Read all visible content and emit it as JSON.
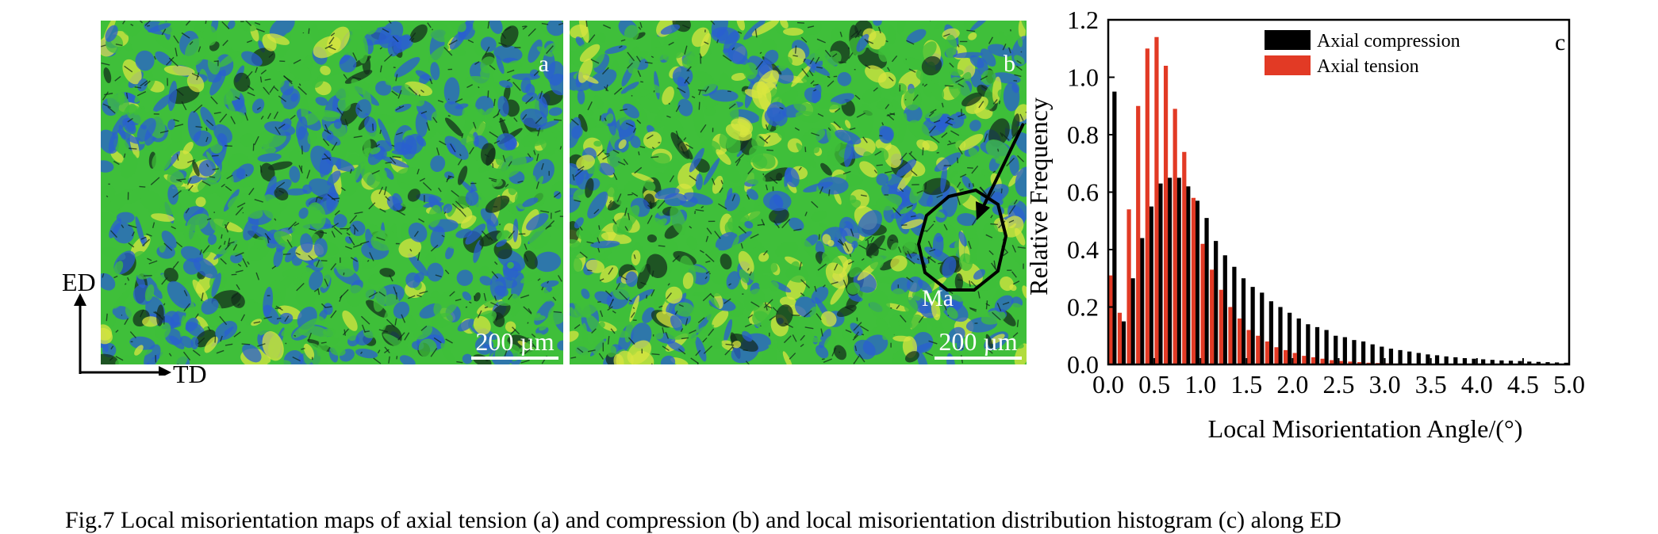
{
  "panels": {
    "a": {
      "letter": "a",
      "scale_label": "200 µm"
    },
    "b": {
      "letter": "b",
      "scale_label": "200 µm",
      "annotation": "Ma"
    }
  },
  "axes_indicator": {
    "vertical": "ED",
    "horizontal": "TD"
  },
  "caption": "Fig.7    Local misorientation maps of axial tension (a) and compression (b) and local misorientation distribution histogram (c) along ED",
  "colors": {
    "compression": "#000000",
    "tension": "#e23a25",
    "map_blue": "#2a5fd0",
    "map_green": "#3fbf3a",
    "map_yellow": "#d8e640"
  },
  "chart_data": {
    "type": "bar",
    "panel_letter": "c",
    "xlabel": "Local Misorientation Angle/(°)",
    "ylabel": "Relative Frequency",
    "xlim": [
      0,
      5.0
    ],
    "ylim": [
      0,
      1.2
    ],
    "xticks": [
      "0.0",
      "0.5",
      "1.0",
      "1.5",
      "2.0",
      "2.5",
      "3.0",
      "3.5",
      "4.0",
      "4.5",
      "5.0"
    ],
    "yticks": [
      "0.0",
      "0.2",
      "0.4",
      "0.6",
      "0.8",
      "1.0",
      "1.2"
    ],
    "legend_position": "top-right",
    "bin_width": 0.1,
    "x": [
      0.05,
      0.15,
      0.25,
      0.35,
      0.45,
      0.55,
      0.65,
      0.75,
      0.85,
      0.95,
      1.05,
      1.15,
      1.25,
      1.35,
      1.45,
      1.55,
      1.65,
      1.75,
      1.85,
      1.95,
      2.05,
      2.15,
      2.25,
      2.35,
      2.45,
      2.55,
      2.65,
      2.75,
      2.85,
      2.95,
      3.05,
      3.15,
      3.25,
      3.35,
      3.45,
      3.55,
      3.65,
      3.75,
      3.85,
      3.95,
      4.05,
      4.15,
      4.25,
      4.35,
      4.45,
      4.55,
      4.65,
      4.75,
      4.85,
      4.95
    ],
    "series": [
      {
        "name": "Axial compression",
        "color": "#000000",
        "values": [
          0.95,
          0.15,
          0.3,
          0.44,
          0.55,
          0.63,
          0.65,
          0.65,
          0.62,
          0.57,
          0.51,
          0.43,
          0.38,
          0.34,
          0.3,
          0.27,
          0.25,
          0.22,
          0.2,
          0.18,
          0.16,
          0.14,
          0.13,
          0.12,
          0.1,
          0.095,
          0.085,
          0.08,
          0.07,
          0.062,
          0.055,
          0.05,
          0.045,
          0.04,
          0.035,
          0.032,
          0.028,
          0.025,
          0.022,
          0.02,
          0.018,
          0.016,
          0.014,
          0.013,
          0.012,
          0.01,
          0.009,
          0.008,
          0.007,
          0.006
        ]
      },
      {
        "name": "Axial tension",
        "color": "#e23a25",
        "values": [
          0.31,
          0.18,
          0.54,
          0.9,
          1.1,
          1.14,
          1.04,
          0.89,
          0.74,
          0.58,
          0.42,
          0.33,
          0.26,
          0.2,
          0.16,
          0.12,
          0.1,
          0.08,
          0.06,
          0.05,
          0.04,
          0.03,
          0.025,
          0.02,
          0.015,
          0.012,
          0.01,
          0.008,
          0.006,
          0.005,
          0.004,
          0.003,
          0.003,
          0.002,
          0.002,
          0.0015,
          0.001,
          0.001,
          0.001,
          0.001,
          0.0008,
          0.0006,
          0.0005,
          0.0004,
          0.0003,
          0.0003,
          0.0002,
          0.0002,
          0.0001,
          0.0001
        ]
      }
    ]
  }
}
